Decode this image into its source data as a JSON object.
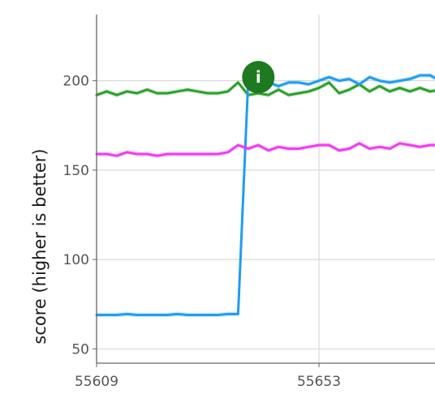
{
  "chart_data": {
    "type": "line",
    "title": "",
    "xlabel": "",
    "ylabel": "score (higher is better)",
    "xlim": [
      55609,
      55700
    ],
    "ylim": [
      42,
      237
    ],
    "x_ticks": [
      55609,
      55653
    ],
    "y_ticks": [
      50,
      100,
      150,
      200
    ],
    "grid": true,
    "legend": "none",
    "x": [
      55609,
      55611,
      55613,
      55615,
      55617,
      55619,
      55621,
      55623,
      55625,
      55627,
      55629,
      55631,
      55633,
      55635,
      55637,
      55639,
      55641,
      55643,
      55645,
      55647,
      55649,
      55651,
      55653,
      55655,
      55657,
      55659,
      55661,
      55663,
      55665,
      55667,
      55669,
      55671,
      55673,
      55675,
      55677,
      55679,
      55681,
      55683
    ],
    "series": [
      {
        "color": "#2ca02c",
        "values": [
          192,
          194,
          192,
          194,
          193,
          195,
          193,
          193,
          194,
          195,
          194,
          193,
          193,
          194,
          199,
          192,
          193,
          192,
          195,
          192,
          193,
          194,
          196,
          199,
          193,
          195,
          198,
          194,
          197,
          194,
          196,
          194,
          196,
          194,
          195,
          193,
          194,
          195
        ]
      },
      {
        "color": "#1f9df0",
        "values": [
          69,
          69,
          69,
          69.5,
          69,
          69,
          69,
          69,
          69.5,
          69,
          69,
          69,
          69,
          69.5,
          69.5,
          200,
          200,
          199,
          197,
          199,
          199,
          198,
          200,
          202,
          200,
          201,
          198,
          202,
          200,
          199,
          200,
          201,
          203,
          203,
          200,
          203,
          202,
          203
        ]
      },
      {
        "color": "#f03cf0",
        "values": [
          159,
          159,
          158,
          160,
          159,
          159,
          158,
          159,
          159,
          159,
          159,
          159,
          159,
          160,
          164,
          162,
          164,
          161,
          163,
          162,
          162,
          163,
          164,
          164,
          161,
          162,
          165,
          162,
          163,
          162,
          165,
          164,
          163,
          164,
          164,
          163,
          164,
          165
        ]
      }
    ],
    "annotations": [
      {
        "x": 55641,
        "y": 202,
        "text": "i",
        "color": "#1e7a1e"
      }
    ]
  }
}
